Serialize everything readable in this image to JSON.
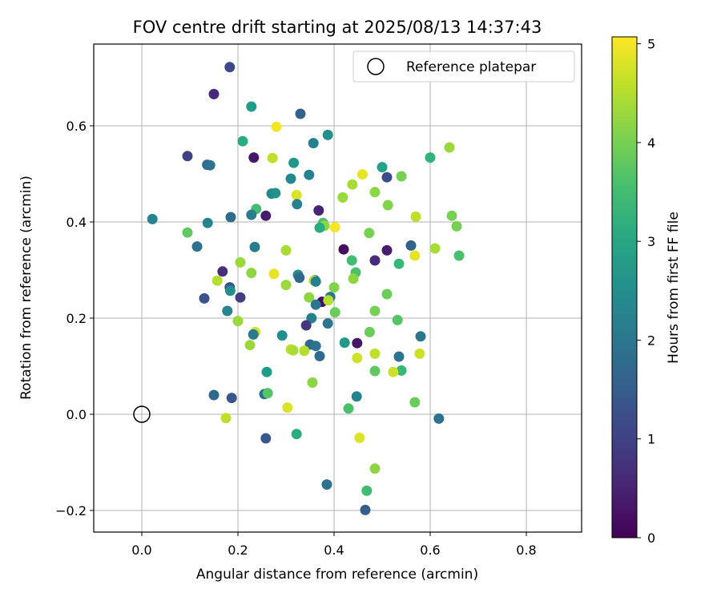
{
  "chart_data": {
    "type": "scatter",
    "title": "FOV centre drift starting at 2025/08/13 14:37:43",
    "xlabel": "Angular distance from reference (arcmin)",
    "ylabel": "Rotation from reference (arcmin)",
    "xlim": [
      -0.1,
      0.915
    ],
    "ylim": [
      -0.245,
      0.77
    ],
    "xticks": [
      0.0,
      0.2,
      0.4,
      0.6,
      0.8
    ],
    "xtick_labels": [
      "0.0",
      "0.2",
      "0.4",
      "0.6",
      "0.8"
    ],
    "yticks": [
      -0.2,
      0.0,
      0.2,
      0.4,
      0.6
    ],
    "ytick_labels": [
      "−0.2",
      "0.0",
      "0.2",
      "0.4",
      "0.6"
    ],
    "grid": true,
    "legend": {
      "placement": "top-right",
      "entries": [
        "Reference platepar"
      ]
    },
    "reference_point": {
      "x": 0.0,
      "y": 0.0,
      "label": "Reference platepar"
    },
    "colorbar": {
      "label": "Hours from first FF file",
      "colormap": "viridis",
      "range": [
        0,
        5.07
      ],
      "ticks": [
        0,
        1,
        2,
        3,
        4,
        5
      ],
      "tick_labels": [
        "0",
        "1",
        "2",
        "3",
        "4",
        "5"
      ]
    },
    "points": [
      [
        0.183,
        0.722,
        1.1
      ],
      [
        0.15,
        0.666,
        0.6
      ],
      [
        0.228,
        0.64,
        2.8
      ],
      [
        0.33,
        0.625,
        1.6
      ],
      [
        0.28,
        0.598,
        5.0
      ],
      [
        0.64,
        0.555,
        4.3
      ],
      [
        0.21,
        0.568,
        3.1
      ],
      [
        0.387,
        0.581,
        2.5
      ],
      [
        0.357,
        0.564,
        2.2
      ],
      [
        0.095,
        0.537,
        1.0
      ],
      [
        0.233,
        0.534,
        0.3
      ],
      [
        0.272,
        0.533,
        4.6
      ],
      [
        0.6,
        0.534,
        3.3
      ],
      [
        0.316,
        0.523,
        2.7
      ],
      [
        0.5,
        0.514,
        2.9
      ],
      [
        0.136,
        0.519,
        1.8
      ],
      [
        0.142,
        0.518,
        1.9
      ],
      [
        0.459,
        0.499,
        4.9
      ],
      [
        0.51,
        0.493,
        1.2
      ],
      [
        0.54,
        0.495,
        4.0
      ],
      [
        0.31,
        0.49,
        2.4
      ],
      [
        0.348,
        0.498,
        2.2
      ],
      [
        0.438,
        0.478,
        4.4
      ],
      [
        0.485,
        0.462,
        4.2
      ],
      [
        0.27,
        0.459,
        2.4
      ],
      [
        0.278,
        0.46,
        2.6
      ],
      [
        0.322,
        0.456,
        4.8
      ],
      [
        0.418,
        0.451,
        4.3
      ],
      [
        0.323,
        0.437,
        2.2
      ],
      [
        0.512,
        0.435,
        4.1
      ],
      [
        0.238,
        0.427,
        3.5
      ],
      [
        0.228,
        0.415,
        2.1
      ],
      [
        0.368,
        0.424,
        0.5
      ],
      [
        0.258,
        0.413,
        0.4
      ],
      [
        0.57,
        0.411,
        4.6
      ],
      [
        0.645,
        0.413,
        4.0
      ],
      [
        0.185,
        0.41,
        1.8
      ],
      [
        0.022,
        0.406,
        2.3
      ],
      [
        0.137,
        0.398,
        2.3
      ],
      [
        0.377,
        0.398,
        3.6
      ],
      [
        0.38,
        0.392,
        4.2
      ],
      [
        0.655,
        0.391,
        4.0
      ],
      [
        0.37,
        0.388,
        3.1
      ],
      [
        0.402,
        0.389,
        5.0
      ],
      [
        0.095,
        0.378,
        3.8
      ],
      [
        0.473,
        0.377,
        4.0
      ],
      [
        0.115,
        0.349,
        1.9
      ],
      [
        0.235,
        0.348,
        2.1
      ],
      [
        0.56,
        0.351,
        1.6
      ],
      [
        0.42,
        0.343,
        0.2
      ],
      [
        0.3,
        0.341,
        4.4
      ],
      [
        0.51,
        0.341,
        0.4
      ],
      [
        0.61,
        0.345,
        4.4
      ],
      [
        0.568,
        0.33,
        4.9
      ],
      [
        0.66,
        0.33,
        3.6
      ],
      [
        0.485,
        0.32,
        0.6
      ],
      [
        0.437,
        0.32,
        3.5
      ],
      [
        0.205,
        0.316,
        4.3
      ],
      [
        0.535,
        0.313,
        3.4
      ],
      [
        0.168,
        0.297,
        0.7
      ],
      [
        0.228,
        0.294,
        4.2
      ],
      [
        0.275,
        0.292,
        4.9
      ],
      [
        0.445,
        0.295,
        3.6
      ],
      [
        0.325,
        0.29,
        2.5
      ],
      [
        0.328,
        0.284,
        1.7
      ],
      [
        0.36,
        0.279,
        1.9
      ],
      [
        0.44,
        0.282,
        4.2
      ],
      [
        0.157,
        0.278,
        4.5
      ],
      [
        0.358,
        0.278,
        4.6
      ],
      [
        0.362,
        0.276,
        2.2
      ],
      [
        0.3,
        0.269,
        4.3
      ],
      [
        0.183,
        0.264,
        1.3
      ],
      [
        0.4,
        0.264,
        4.1
      ],
      [
        0.184,
        0.257,
        2.5
      ],
      [
        0.51,
        0.25,
        3.9
      ],
      [
        0.348,
        0.243,
        4.2
      ],
      [
        0.205,
        0.243,
        0.9
      ],
      [
        0.13,
        0.241,
        1.3
      ],
      [
        0.392,
        0.244,
        2.0
      ],
      [
        0.375,
        0.234,
        0.2
      ],
      [
        0.388,
        0.237,
        4.5
      ],
      [
        0.362,
        0.228,
        2.0
      ],
      [
        0.178,
        0.215,
        2.3
      ],
      [
        0.402,
        0.212,
        3.9
      ],
      [
        0.485,
        0.215,
        4.0
      ],
      [
        0.353,
        0.2,
        2.2
      ],
      [
        0.2,
        0.194,
        4.3
      ],
      [
        0.532,
        0.196,
        3.7
      ],
      [
        0.387,
        0.189,
        2.0
      ],
      [
        0.342,
        0.185,
        0.8
      ],
      [
        0.236,
        0.171,
        4.7
      ],
      [
        0.474,
        0.171,
        3.9
      ],
      [
        0.232,
        0.166,
        2.1
      ],
      [
        0.292,
        0.164,
        2.5
      ],
      [
        0.58,
        0.162,
        2.0
      ],
      [
        0.422,
        0.149,
        2.7
      ],
      [
        0.448,
        0.148,
        0.3
      ],
      [
        0.225,
        0.144,
        4.3
      ],
      [
        0.35,
        0.145,
        1.7
      ],
      [
        0.362,
        0.142,
        1.9
      ],
      [
        0.31,
        0.135,
        4.6
      ],
      [
        0.315,
        0.133,
        4.4
      ],
      [
        0.338,
        0.132,
        4.5
      ],
      [
        0.485,
        0.126,
        4.6
      ],
      [
        0.578,
        0.126,
        4.7
      ],
      [
        0.37,
        0.121,
        1.8
      ],
      [
        0.535,
        0.12,
        1.9
      ],
      [
        0.448,
        0.117,
        4.7
      ],
      [
        0.485,
        0.09,
        3.8
      ],
      [
        0.54,
        0.091,
        3.4
      ],
      [
        0.523,
        0.088,
        4.7
      ],
      [
        0.26,
        0.088,
        2.8
      ],
      [
        0.355,
        0.066,
        4.2
      ],
      [
        0.255,
        0.042,
        1.8
      ],
      [
        0.262,
        0.044,
        3.7
      ],
      [
        0.15,
        0.04,
        1.7
      ],
      [
        0.187,
        0.034,
        1.4
      ],
      [
        0.447,
        0.037,
        2.3
      ],
      [
        0.568,
        0.025,
        3.9
      ],
      [
        0.303,
        0.014,
        4.8
      ],
      [
        0.43,
        0.012,
        3.6
      ],
      [
        0.175,
        -0.008,
        4.6
      ],
      [
        0.618,
        -0.009,
        1.9
      ],
      [
        0.322,
        -0.041,
        3.1
      ],
      [
        0.258,
        -0.05,
        1.4
      ],
      [
        0.453,
        -0.049,
        4.8
      ],
      [
        0.485,
        -0.113,
        4.2
      ],
      [
        0.385,
        -0.146,
        1.9
      ],
      [
        0.468,
        -0.159,
        3.5
      ],
      [
        0.465,
        -0.199,
        1.5
      ]
    ]
  }
}
